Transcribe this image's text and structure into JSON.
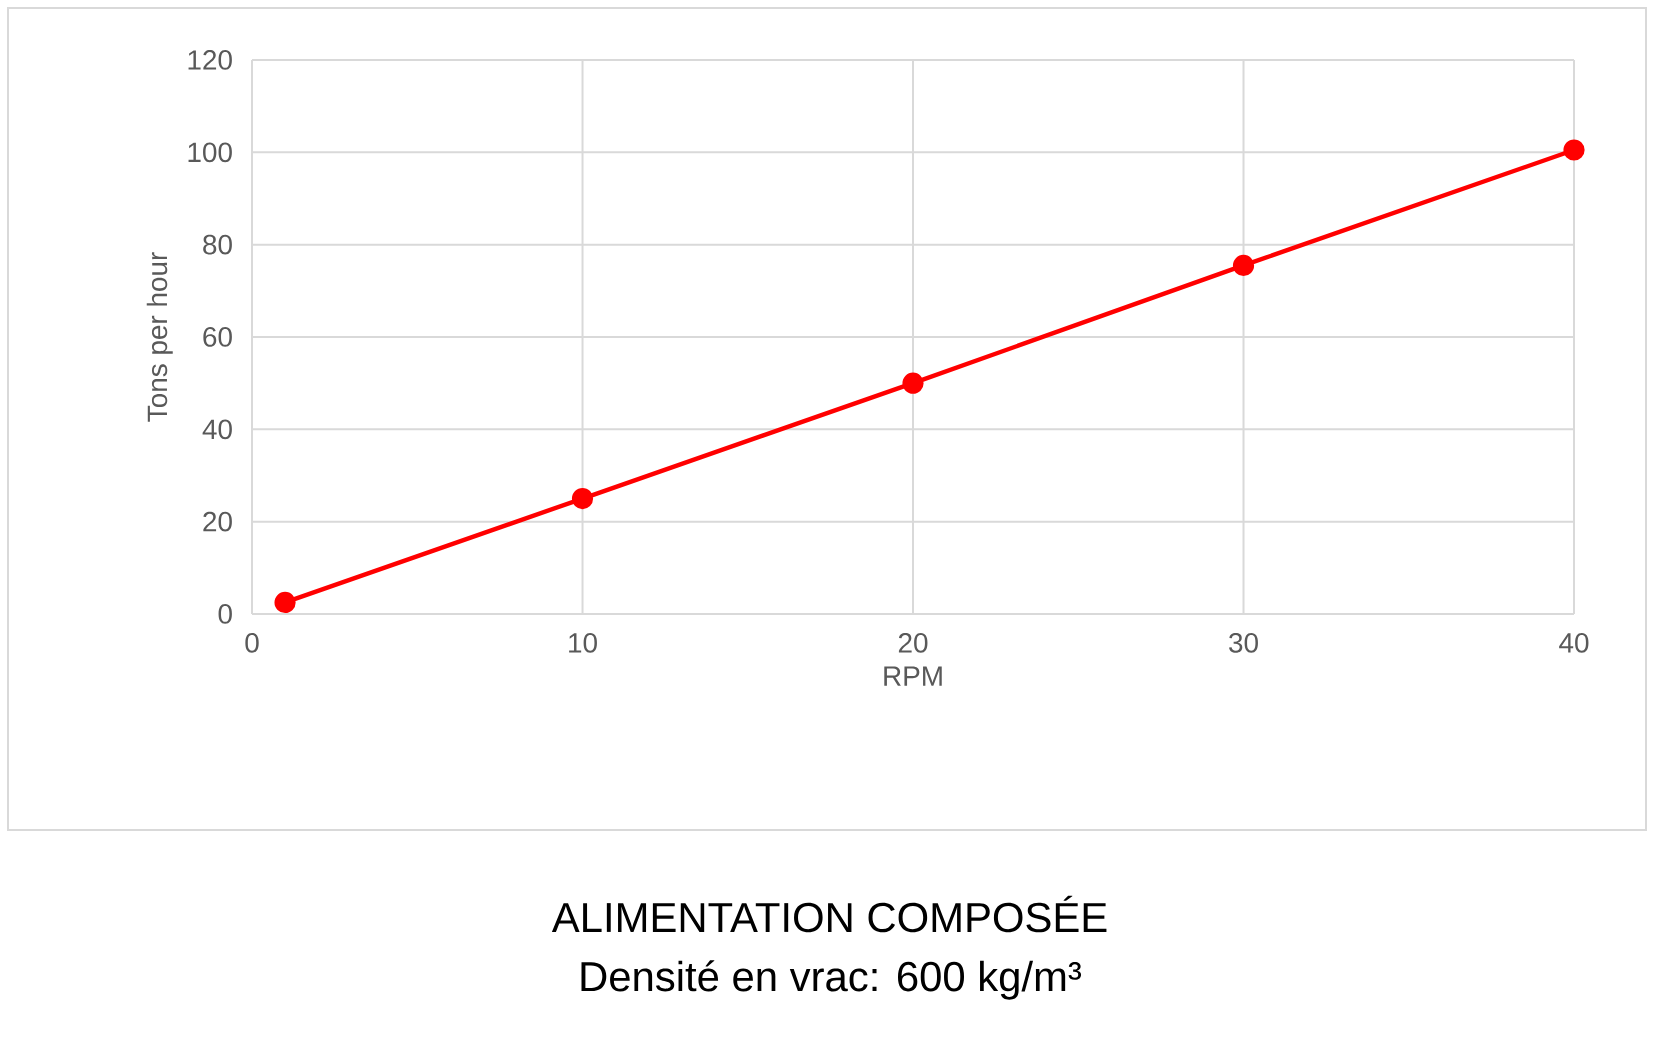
{
  "chart_data": {
    "type": "line",
    "title": "ALIMENTATION COMPOSÉE",
    "subtitle": "Densité en vrac: 600 kg/m³",
    "xlabel": "RPM",
    "ylabel": "Tons per hour",
    "x": [
      1,
      10,
      20,
      30,
      40
    ],
    "series": [
      {
        "color": "#ff0000",
        "values": [
          2.5,
          25,
          50,
          75.5,
          100.5
        ]
      }
    ],
    "xlim": [
      0,
      40
    ],
    "xticks": [
      0,
      10,
      20,
      30,
      40
    ],
    "ylim": [
      0,
      120
    ],
    "yticks": [
      0,
      20,
      40,
      60,
      80,
      100,
      120
    ],
    "grid": true,
    "marker": "circle",
    "line_style": "solid"
  }
}
